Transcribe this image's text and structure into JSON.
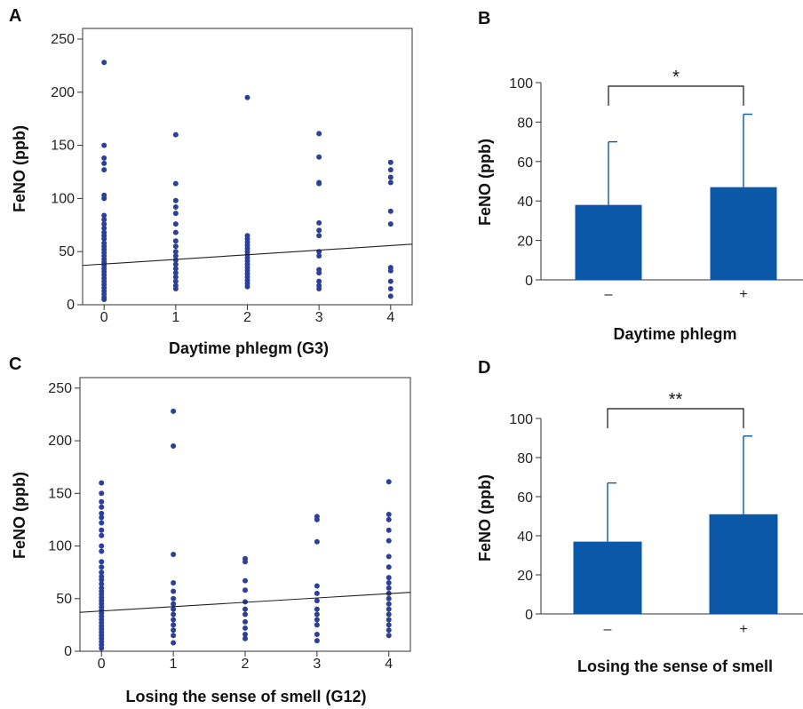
{
  "colors": {
    "point": "#2b3f9b",
    "bar": "#0b57a8",
    "regression_line": "#222222"
  },
  "chart_data": [
    {
      "panel": "A",
      "type": "scatter",
      "xlabel": "Daytime phlegm (G3)",
      "ylabel": "FeNO (ppb)",
      "xlim": [
        -0.3,
        4.3
      ],
      "ylim": [
        0,
        260
      ],
      "xticks": [
        0,
        1,
        2,
        3,
        4
      ],
      "yticks": [
        0,
        50,
        100,
        150,
        200,
        250
      ],
      "frame": "box",
      "points": {
        "0": [
          228,
          150,
          138,
          133,
          127,
          103,
          100,
          84,
          80,
          76,
          72,
          68,
          65,
          62,
          58,
          55,
          52,
          49,
          46,
          43,
          40,
          37,
          34,
          31,
          28,
          25,
          22,
          19,
          16,
          13,
          10,
          7,
          5
        ],
        "1": [
          160,
          114,
          98,
          92,
          86,
          76,
          68,
          60,
          55,
          50,
          46,
          42,
          38,
          34,
          30,
          26,
          22,
          18,
          15
        ],
        "2": [
          195,
          65,
          62,
          59,
          56,
          53,
          50,
          47,
          44,
          41,
          38,
          35,
          32,
          29,
          26,
          23,
          20,
          17
        ],
        "3": [
          161,
          139,
          115,
          114,
          77,
          70,
          65,
          50,
          46,
          33,
          30,
          22,
          18,
          15
        ],
        "4": [
          134,
          127,
          120,
          115,
          88,
          76,
          35,
          32,
          22,
          15,
          8
        ]
      },
      "regression": {
        "x": [
          -0.3,
          4.3
        ],
        "y": [
          37,
          57
        ]
      }
    },
    {
      "panel": "B",
      "type": "bar",
      "xlabel": "Daytime phlegm",
      "ylabel": "FeNO (ppb)",
      "categories": [
        "–",
        "+"
      ],
      "values": [
        38,
        47
      ],
      "error_upper": [
        70,
        84
      ],
      "ylim": [
        0,
        100
      ],
      "yticks": [
        0,
        20,
        40,
        60,
        80,
        100
      ],
      "significance": "*"
    },
    {
      "panel": "C",
      "type": "scatter",
      "xlabel": "Losing the sense of smell (G12)",
      "ylabel": "FeNO (ppb)",
      "xlim": [
        -0.3,
        4.3
      ],
      "ylim": [
        0,
        260
      ],
      "xticks": [
        0,
        1,
        2,
        3,
        4
      ],
      "yticks": [
        0,
        50,
        100,
        150,
        200,
        250
      ],
      "frame": "box",
      "points": {
        "0": [
          160,
          150,
          142,
          137,
          131,
          127,
          122,
          115,
          110,
          100,
          95,
          85,
          80,
          75,
          71,
          68,
          64,
          60,
          57,
          54,
          51,
          48,
          45,
          42,
          39,
          36,
          33,
          30,
          27,
          24,
          21,
          18,
          15,
          12,
          9,
          6,
          3
        ],
        "1": [
          228,
          195,
          92,
          65,
          57,
          50,
          45,
          40,
          35,
          30,
          25,
          20,
          15,
          8
        ],
        "2": [
          88,
          85,
          67,
          58,
          47,
          40,
          35,
          28,
          22,
          16,
          12
        ],
        "3": [
          128,
          125,
          104,
          62,
          55,
          48,
          40,
          35,
          30,
          25,
          16,
          10
        ],
        "4": [
          161,
          130,
          125,
          115,
          105,
          90,
          80,
          70,
          65,
          60,
          55,
          50,
          45,
          40,
          35,
          30,
          25,
          20,
          15
        ]
      },
      "regression": {
        "x": [
          -0.3,
          4.3
        ],
        "y": [
          37,
          56
        ]
      }
    },
    {
      "panel": "D",
      "type": "bar",
      "xlabel": "Losing the sense of smell",
      "ylabel": "FeNO (ppb)",
      "categories": [
        "–",
        "+"
      ],
      "values": [
        37,
        51
      ],
      "error_upper": [
        67,
        91
      ],
      "ylim": [
        0,
        100
      ],
      "yticks": [
        0,
        20,
        40,
        60,
        80,
        100
      ],
      "significance": "**"
    }
  ]
}
